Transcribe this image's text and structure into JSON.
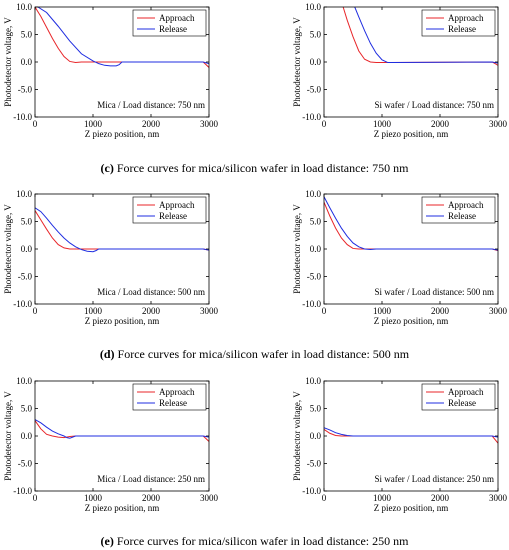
{
  "captions": [
    {
      "letter": "(c)",
      "text": " Force curves for mica/silicon wafer in load distance: 750 nm"
    },
    {
      "letter": "(d)",
      "text": " Force curves for mica/silicon wafer in load distance: 500 nm"
    },
    {
      "letter": "(e)",
      "text": " Force curves for mica/silicon wafer in load distance: 250 nm"
    }
  ],
  "colors": {
    "approach": "#e8262a",
    "release": "#1f2de0"
  },
  "chart_data": [
    {
      "type": "line",
      "annotation": "Mica / Load distance: 750 nm",
      "xlabel": "Z piezo position, nm",
      "ylabel": "Photodetector voltage, V",
      "xlim": [
        0,
        3000
      ],
      "ylim": [
        -10,
        10
      ],
      "xticks": [
        0,
        1000,
        2000,
        3000
      ],
      "yticks": [
        -10.0,
        -5.0,
        0.0,
        5.0,
        10.0
      ],
      "legend_position": "top-right",
      "series": [
        {
          "name": "Approach",
          "x": [
            0,
            100,
            200,
            300,
            400,
            500,
            600,
            700,
            800,
            1500,
            2900,
            3000
          ],
          "y": [
            10.0,
            8.3,
            6.3,
            4.3,
            2.5,
            1.0,
            0.1,
            -0.1,
            0,
            0,
            0,
            -1.0
          ]
        },
        {
          "name": "Release",
          "x": [
            50,
            200,
            400,
            600,
            800,
            1000,
            1100,
            1200,
            1300,
            1400,
            1450,
            1500,
            2900,
            3000
          ],
          "y": [
            10.0,
            9.0,
            6.5,
            3.8,
            1.5,
            0.2,
            -0.3,
            -0.6,
            -0.7,
            -0.7,
            -0.5,
            0,
            0,
            -0.3
          ]
        }
      ]
    },
    {
      "type": "line",
      "annotation": "Si wafer / Load distance: 750 nm",
      "xlabel": "Z piezo position, nm",
      "ylabel": "Photodetector voltage, V",
      "xlim": [
        0,
        3000
      ],
      "ylim": [
        -10,
        10
      ],
      "xticks": [
        0,
        1000,
        2000,
        3000
      ],
      "yticks": [
        -10.0,
        -5.0,
        0.0,
        5.0,
        10.0
      ],
      "legend_position": "top-right",
      "series": [
        {
          "name": "Approach",
          "x": [
            330,
            400,
            500,
            600,
            700,
            800,
            900,
            1100,
            2900,
            3000
          ],
          "y": [
            10.0,
            7.6,
            4.6,
            2.0,
            0.5,
            0.0,
            -0.1,
            -0.1,
            0,
            -0.6
          ]
        },
        {
          "name": "Release",
          "x": [
            530,
            600,
            700,
            800,
            900,
            1000,
            1100,
            1200,
            2900,
            3000
          ],
          "y": [
            10.0,
            8.2,
            5.7,
            3.4,
            1.6,
            0.4,
            -0.1,
            -0.1,
            0,
            -0.2
          ]
        }
      ]
    },
    {
      "type": "line",
      "annotation": "Mica / Load distance: 500 nm",
      "xlabel": "Z piezo position, nm",
      "ylabel": "Photodetector voltage, V",
      "xlim": [
        0,
        3000
      ],
      "ylim": [
        -10,
        10
      ],
      "xticks": [
        0,
        1000,
        2000,
        3000
      ],
      "yticks": [
        -10.0,
        -5.0,
        0.0,
        5.0,
        10.0
      ],
      "legend_position": "top-right",
      "series": [
        {
          "name": "Approach",
          "x": [
            0,
            100,
            200,
            300,
            400,
            500,
            600,
            700,
            900,
            2900,
            3000
          ],
          "y": [
            7.0,
            5.3,
            3.6,
            2.0,
            0.8,
            0.2,
            0.0,
            0.0,
            0,
            0,
            -0.2
          ]
        },
        {
          "name": "Release",
          "x": [
            0,
            100,
            200,
            300,
            400,
            500,
            600,
            700,
            800,
            900,
            1000,
            1050,
            1100,
            2900,
            3000
          ],
          "y": [
            7.5,
            6.8,
            5.6,
            4.3,
            3.1,
            2.0,
            1.1,
            0.4,
            -0.1,
            -0.4,
            -0.5,
            -0.3,
            0,
            0,
            -0.2
          ]
        }
      ]
    },
    {
      "type": "line",
      "annotation": "Si wafer / Load distance: 500 nm",
      "xlabel": "Z piezo position, nm",
      "ylabel": "Photodetector voltage, V",
      "xlim": [
        0,
        3000
      ],
      "ylim": [
        -10,
        10
      ],
      "xticks": [
        0,
        1000,
        2000,
        3000
      ],
      "yticks": [
        -10.0,
        -5.0,
        0.0,
        5.0,
        10.0
      ],
      "legend_position": "top-right",
      "series": [
        {
          "name": "Approach",
          "x": [
            0,
            100,
            200,
            300,
            400,
            500,
            600,
            700,
            2900,
            3000
          ],
          "y": [
            8.5,
            6.0,
            3.8,
            2.0,
            0.8,
            0.1,
            0.0,
            0.0,
            0,
            -0.3
          ]
        },
        {
          "name": "Release",
          "x": [
            0,
            100,
            200,
            300,
            400,
            500,
            600,
            700,
            800,
            900,
            2900,
            3000
          ],
          "y": [
            9.5,
            7.5,
            5.6,
            3.8,
            2.3,
            1.1,
            0.4,
            0.0,
            -0.1,
            0.0,
            0,
            -0.2
          ]
        }
      ]
    },
    {
      "type": "line",
      "annotation": "Mica / Load distance: 250 nm",
      "xlabel": "Z piezo position, nm",
      "ylabel": "Photodetector voltage, V",
      "xlim": [
        0,
        3000
      ],
      "ylim": [
        -10,
        10
      ],
      "xticks": [
        0,
        1000,
        2000,
        3000
      ],
      "yticks": [
        -10.0,
        -5.0,
        0.0,
        5.0,
        10.0
      ],
      "legend_position": "top-right",
      "series": [
        {
          "name": "Approach",
          "x": [
            0,
            100,
            200,
            300,
            400,
            500,
            600,
            700,
            2900,
            3000
          ],
          "y": [
            2.8,
            1.3,
            0.3,
            0.0,
            -0.2,
            -0.3,
            -0.1,
            0.0,
            0,
            -1.0
          ]
        },
        {
          "name": "Release",
          "x": [
            0,
            100,
            200,
            300,
            400,
            500,
            550,
            600,
            700,
            800,
            2900,
            3000
          ],
          "y": [
            3.0,
            2.4,
            1.6,
            0.9,
            0.4,
            0.0,
            -0.3,
            -0.4,
            0.0,
            0.0,
            0,
            -0.2
          ]
        }
      ]
    },
    {
      "type": "line",
      "annotation": "Si wafer / Load distance: 250 nm",
      "xlabel": "Z piezo position, nm",
      "ylabel": "Photodetector voltage, V",
      "xlim": [
        0,
        3000
      ],
      "ylim": [
        -10,
        10
      ],
      "xticks": [
        0,
        1000,
        2000,
        3000
      ],
      "yticks": [
        -10.0,
        -5.0,
        0.0,
        5.0,
        10.0
      ],
      "legend_position": "top-right",
      "series": [
        {
          "name": "Approach",
          "x": [
            0,
            100,
            200,
            300,
            400,
            500,
            2900,
            3000
          ],
          "y": [
            1.2,
            0.5,
            0.1,
            0.0,
            0.0,
            0.0,
            0,
            -1.3
          ]
        },
        {
          "name": "Release",
          "x": [
            0,
            100,
            200,
            300,
            400,
            500,
            600,
            2900,
            3000
          ],
          "y": [
            1.5,
            1.1,
            0.6,
            0.3,
            0.1,
            0.0,
            0.0,
            0,
            -0.2
          ]
        }
      ]
    }
  ]
}
